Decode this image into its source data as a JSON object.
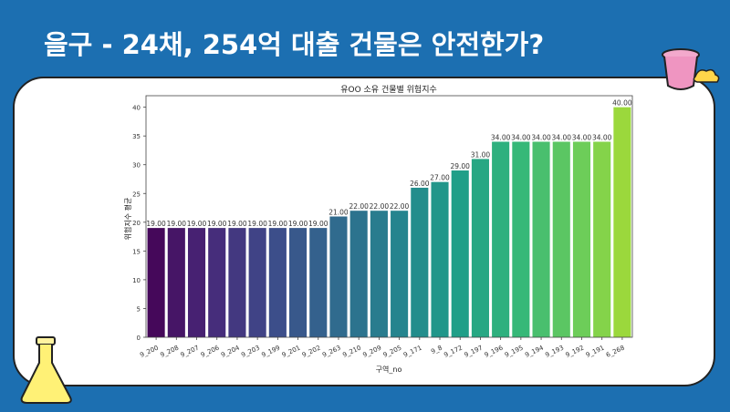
{
  "slide_title": "을구 - 24채, 254억 대출 건물은 안전한가?",
  "chart_data": {
    "type": "bar",
    "title": "유OO 소유 건물별 위험지수",
    "xlabel": "구역_no",
    "ylabel": "위험지수 평균",
    "ylim": [
      0,
      42
    ],
    "yticks": [
      0,
      5,
      10,
      15,
      20,
      25,
      30,
      35,
      40
    ],
    "categories": [
      "9_200",
      "9_208",
      "9_207",
      "9_206",
      "9_204",
      "9_203",
      "9_199",
      "9_201",
      "9_202",
      "9_263",
      "9_210",
      "9_209",
      "9_205",
      "9_171",
      "9_8",
      "9_172",
      "9_197",
      "9_196",
      "9_195",
      "9_194",
      "9_193",
      "9_192",
      "9_191",
      "6_268"
    ],
    "values": [
      19,
      19,
      19,
      19,
      19,
      19,
      19,
      19,
      19,
      21,
      22,
      22,
      22,
      26,
      27,
      29,
      31,
      34,
      34,
      34,
      34,
      34,
      34,
      40
    ],
    "data_labels": [
      "19.00",
      "19.00",
      "19.00",
      "19.00",
      "19.00",
      "19.00",
      "19.00",
      "19.00",
      "19.00",
      "21.00",
      "22.00",
      "22.00",
      "22.00",
      "26.00",
      "27.00",
      "29.00",
      "31.00",
      "34.00",
      "34.00",
      "34.00",
      "34.00",
      "34.00",
      "34.00",
      "40.00"
    ],
    "colormap": "viridis",
    "grid": false
  },
  "colors": {
    "background": "#1c6fb1",
    "card": "#ffffff"
  }
}
